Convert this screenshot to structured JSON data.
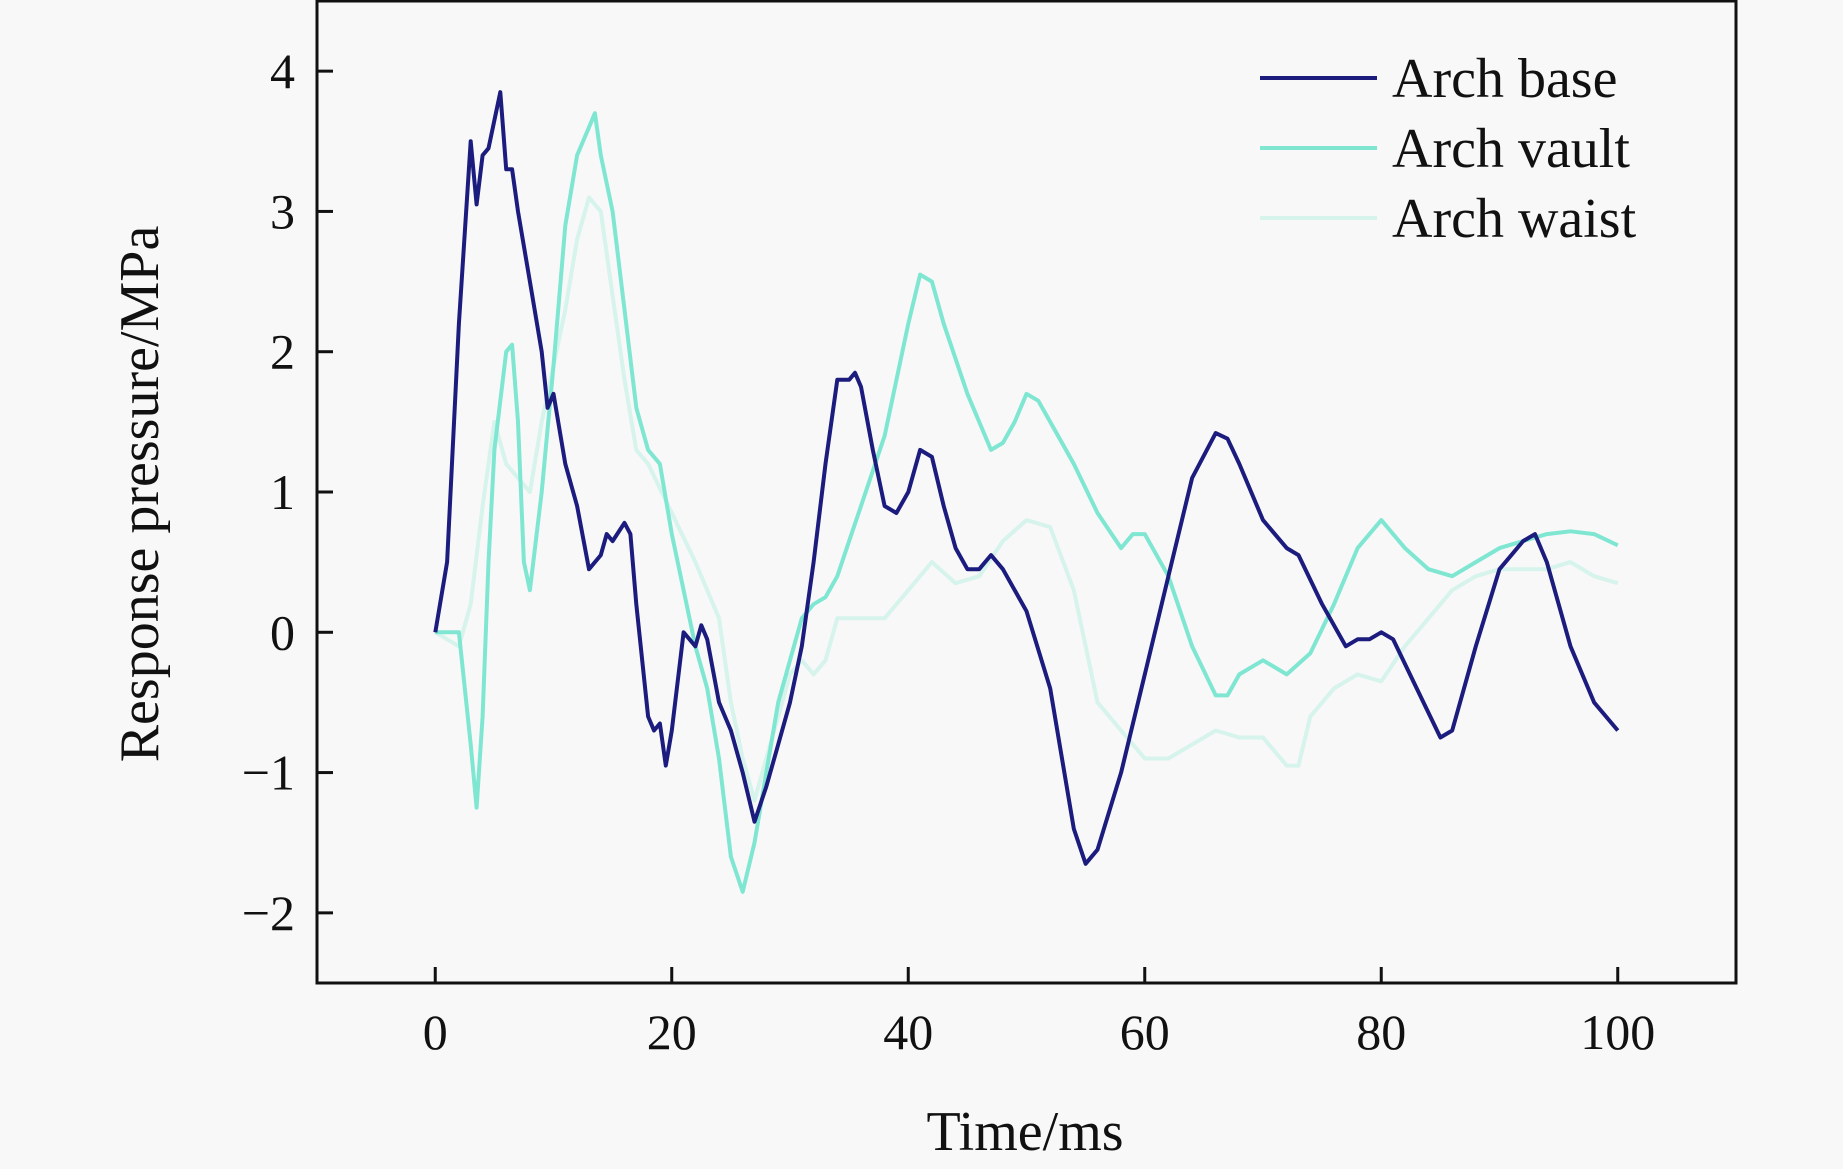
{
  "chart_data": {
    "type": "line",
    "title": "",
    "xlabel": "Time/ms",
    "ylabel": "Response pressure/MPa",
    "xlim": [
      -10,
      110
    ],
    "ylim": [
      -2.5,
      4.5
    ],
    "xticks": [
      0,
      20,
      40,
      60,
      80,
      100
    ],
    "yticks": [
      -2,
      -1,
      0,
      1,
      2,
      3,
      4
    ],
    "ytick_labels": [
      "−2",
      "−1",
      "0",
      "1",
      "2",
      "3",
      "4"
    ],
    "xtick_labels": [
      "0",
      "20",
      "40",
      "60",
      "80",
      "100"
    ],
    "grid": false,
    "legend_position": "top-right",
    "series": [
      {
        "name": "Arch base",
        "color": "#1c1c7e",
        "x": [
          0,
          1,
          2,
          3,
          3.5,
          4,
          4.5,
          5.5,
          6,
          6.5,
          7,
          8,
          9,
          9.5,
          10,
          11,
          12,
          13,
          14,
          14.5,
          15,
          16,
          16.5,
          17,
          18,
          18.5,
          19,
          19.5,
          20,
          21,
          22,
          22.5,
          23,
          24,
          25,
          26,
          27,
          28,
          29,
          30,
          31,
          32,
          33,
          34,
          35,
          35.5,
          36,
          37,
          38,
          39,
          40,
          41,
          42,
          43,
          44,
          45,
          46,
          47,
          48,
          50,
          52,
          54,
          55,
          56,
          58,
          60,
          62,
          64,
          66,
          67,
          68,
          70,
          72,
          73,
          75,
          77,
          78,
          79,
          80,
          81,
          83,
          85,
          86,
          88,
          90,
          92,
          93,
          94,
          96,
          98,
          100
        ],
        "y": [
          0,
          0.5,
          2.2,
          3.5,
          3.05,
          3.4,
          3.45,
          3.85,
          3.3,
          3.3,
          3.0,
          2.5,
          2.0,
          1.6,
          1.7,
          1.2,
          0.9,
          0.45,
          0.55,
          0.7,
          0.65,
          0.78,
          0.7,
          0.2,
          -0.6,
          -0.7,
          -0.65,
          -0.95,
          -0.7,
          0,
          -0.1,
          0.05,
          -0.05,
          -0.5,
          -0.7,
          -1.0,
          -1.35,
          -1.1,
          -0.8,
          -0.5,
          -0.1,
          0.5,
          1.2,
          1.8,
          1.8,
          1.85,
          1.75,
          1.3,
          0.9,
          0.85,
          1.0,
          1.3,
          1.25,
          0.9,
          0.6,
          0.45,
          0.45,
          0.55,
          0.45,
          0.15,
          -0.4,
          -1.4,
          -1.65,
          -1.55,
          -1.0,
          -0.3,
          0.4,
          1.1,
          1.42,
          1.38,
          1.2,
          0.8,
          0.6,
          0.55,
          0.2,
          -0.1,
          -0.05,
          -0.05,
          0,
          -0.05,
          -0.4,
          -0.75,
          -0.7,
          -0.1,
          0.45,
          0.65,
          0.7,
          0.5,
          -0.1,
          -0.5,
          -0.7
        ]
      },
      {
        "name": "Arch vault",
        "color": "#7fe6d2",
        "x": [
          0,
          2,
          3,
          3.5,
          4,
          4.5,
          5,
          6,
          6.5,
          7,
          7.5,
          8,
          9,
          10,
          11,
          12,
          13,
          13.5,
          14,
          15,
          16,
          17,
          18,
          19,
          20,
          21,
          22,
          23,
          24,
          25,
          26,
          27,
          28,
          29,
          30,
          31,
          32,
          33,
          34,
          35,
          36,
          38,
          40,
          41,
          42,
          43,
          45,
          46,
          47,
          48,
          49,
          50,
          51,
          52,
          54,
          56,
          58,
          59,
          60,
          62,
          64,
          66,
          67,
          68,
          70,
          72,
          74,
          76,
          78,
          80,
          82,
          84,
          86,
          88,
          90,
          92,
          94,
          96,
          98,
          100
        ],
        "y": [
          0,
          0,
          -0.8,
          -1.25,
          -0.6,
          0.5,
          1.3,
          2.0,
          2.05,
          1.5,
          0.5,
          0.3,
          1.0,
          1.9,
          2.9,
          3.4,
          3.6,
          3.7,
          3.4,
          3.0,
          2.3,
          1.6,
          1.3,
          1.2,
          0.7,
          0.3,
          -0.1,
          -0.4,
          -0.9,
          -1.6,
          -1.85,
          -1.5,
          -1.0,
          -0.5,
          -0.2,
          0.1,
          0.2,
          0.25,
          0.4,
          0.65,
          0.9,
          1.4,
          2.2,
          2.55,
          2.5,
          2.2,
          1.7,
          1.5,
          1.3,
          1.35,
          1.5,
          1.7,
          1.65,
          1.5,
          1.2,
          0.85,
          0.6,
          0.7,
          0.7,
          0.4,
          -0.1,
          -0.45,
          -0.45,
          -0.3,
          -0.2,
          -0.3,
          -0.15,
          0.2,
          0.6,
          0.8,
          0.6,
          0.45,
          0.4,
          0.5,
          0.6,
          0.65,
          0.7,
          0.72,
          0.7,
          0.62
        ]
      },
      {
        "name": "Arch waist",
        "color": "#d6f3ec",
        "x": [
          0,
          2,
          3,
          4,
          5,
          6,
          7,
          8,
          9,
          10,
          11,
          12,
          13,
          14,
          15,
          16,
          17,
          18,
          20,
          22,
          24,
          25,
          26,
          27,
          28,
          29,
          30,
          31,
          32,
          33,
          34,
          36,
          38,
          40,
          42,
          44,
          46,
          48,
          50,
          52,
          54,
          56,
          58,
          60,
          62,
          64,
          66,
          68,
          70,
          72,
          73,
          74,
          76,
          78,
          80,
          82,
          84,
          86,
          88,
          90,
          92,
          94,
          96,
          98,
          100
        ],
        "y": [
          0,
          -0.1,
          0.2,
          0.9,
          1.5,
          1.2,
          1.1,
          1.0,
          1.5,
          1.9,
          2.3,
          2.8,
          3.1,
          3.0,
          2.4,
          1.8,
          1.3,
          1.2,
          0.85,
          0.5,
          0.1,
          -0.5,
          -0.9,
          -1.2,
          -0.9,
          -0.6,
          -0.3,
          -0.2,
          -0.3,
          -0.2,
          0.1,
          0.1,
          0.1,
          0.3,
          0.5,
          0.35,
          0.4,
          0.65,
          0.8,
          0.75,
          0.3,
          -0.5,
          -0.7,
          -0.9,
          -0.9,
          -0.8,
          -0.7,
          -0.75,
          -0.75,
          -0.95,
          -0.95,
          -0.6,
          -0.4,
          -0.3,
          -0.35,
          -0.1,
          0.1,
          0.3,
          0.4,
          0.45,
          0.45,
          0.45,
          0.5,
          0.4,
          0.35
        ]
      }
    ]
  }
}
